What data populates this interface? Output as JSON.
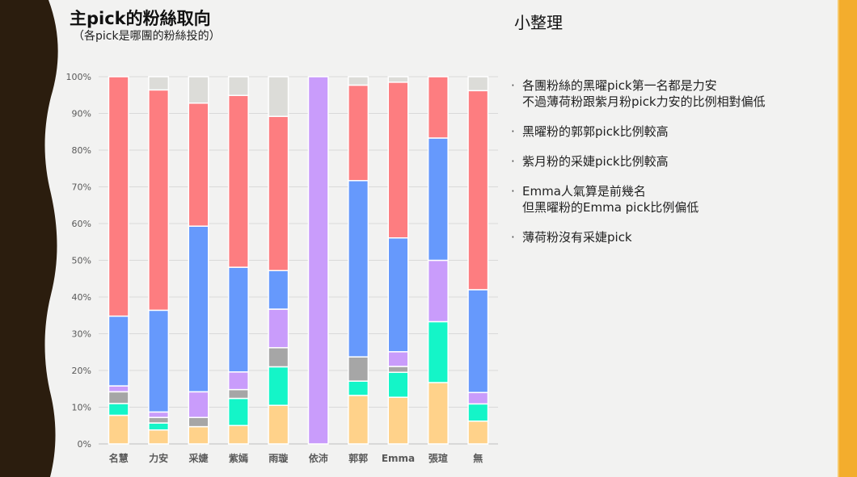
{
  "page": {
    "title": "主pick的粉絲取向",
    "subtitle": "（各pick是哪團的粉絲投的）",
    "summary_title": "小整理"
  },
  "notes": [
    {
      "lines": [
        "各團粉絲的黑曜pick第一名都是力安",
        "不過薄荷粉跟紫月粉pick力安的比例相對偏低"
      ]
    },
    {
      "lines": [
        "黑曜粉的郭郭pick比例較高"
      ]
    },
    {
      "lines": [
        "紫月粉的采婕pick比例較高"
      ]
    },
    {
      "lines": [
        "Emma人氣算是前幾名",
        "但黑曜粉的Emma pick比例偏低"
      ]
    },
    {
      "lines": [
        "薄荷粉沒有采婕pick"
      ]
    }
  ],
  "colors": {
    "background": "#f2f2f1",
    "left_deco": "#2b1d0e",
    "right_bar": "#f3ad2d"
  },
  "chart_data": {
    "type": "bar",
    "stacked": true,
    "percent": true,
    "categories": [
      "名慧",
      "力安",
      "采婕",
      "紫嫣",
      "雨璇",
      "依沛",
      "郭郭",
      "Emma",
      "張瑄",
      "無"
    ],
    "ylim": [
      0,
      100
    ],
    "yticks": [
      "0%",
      "10%",
      "20%",
      "30%",
      "40%",
      "50%",
      "60%",
      "70%",
      "80%",
      "90%",
      "100%"
    ],
    "grid": true,
    "series": [
      {
        "color": "#ffd28a",
        "values": [
          7.8,
          3.8,
          4.7,
          5.0,
          10.5,
          0,
          13.2,
          12.7,
          16.7,
          6.2
        ]
      },
      {
        "color": "#14f5c8",
        "values": [
          3.2,
          1.9,
          0,
          7.4,
          10.5,
          0,
          3.9,
          6.8,
          16.6,
          4.7
        ]
      },
      {
        "color": "#a6a6a6",
        "values": [
          3.2,
          1.5,
          2.5,
          2.4,
          5.2,
          0,
          6.6,
          1.6,
          0,
          0
        ]
      },
      {
        "color": "#c99cfb",
        "values": [
          1.6,
          1.5,
          7.0,
          4.8,
          10.5,
          100,
          0,
          4.0,
          16.7,
          3.1
        ]
      },
      {
        "color": "#6699fc",
        "values": [
          19.0,
          27.7,
          45.1,
          28.5,
          10.5,
          0,
          48.0,
          31.0,
          33.3,
          28.0
        ]
      },
      {
        "color": "#fd7d80",
        "values": [
          65.2,
          60.0,
          33.5,
          46.8,
          42.0,
          0,
          26.0,
          42.4,
          16.7,
          54.2
        ]
      },
      {
        "color": "#dcdcd8",
        "values": [
          0,
          3.6,
          7.2,
          5.1,
          10.8,
          0,
          2.3,
          1.5,
          0,
          3.8
        ]
      }
    ]
  }
}
